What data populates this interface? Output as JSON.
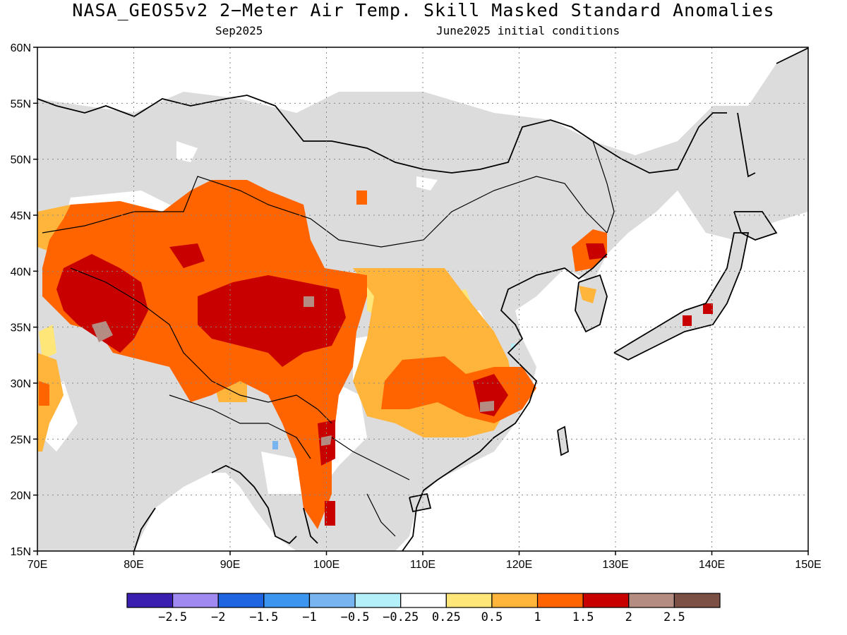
{
  "title": "NASA_GEOS5v2 2−Meter Air Temp. Skill Masked Standard Anomalies",
  "subtitle_left": "Sep2025",
  "subtitle_right": "June2025 initial conditions",
  "map": {
    "lon_range": [
      70,
      150
    ],
    "lat_range": [
      15,
      60
    ],
    "lat_labels": [
      "60N",
      "55N",
      "50N",
      "45N",
      "40N",
      "35N",
      "30N",
      "25N",
      "20N",
      "15N"
    ],
    "lon_labels": [
      "70E",
      "80E",
      "90E",
      "100E",
      "110E",
      "120E",
      "130E",
      "140E",
      "150E"
    ],
    "land_color": "#dcdcdc",
    "ocean_color": "#ffffff",
    "gridlines": "dotted"
  },
  "colorbar": {
    "colors": [
      "#3a1fb0",
      "#a08af2",
      "#1f64e0",
      "#3c96f0",
      "#78b4f0",
      "#b4f0fa",
      "#ffffff",
      "#ffe678",
      "#ffb43c",
      "#ff6400",
      "#c80000",
      "#b48c82",
      "#7d5046"
    ],
    "tick_labels": [
      "−2.5",
      "−2",
      "−1.5",
      "−1",
      "−0.5",
      "−0.25",
      "0.25",
      "0.5",
      "1",
      "1.5",
      "2",
      "2.5"
    ]
  }
}
